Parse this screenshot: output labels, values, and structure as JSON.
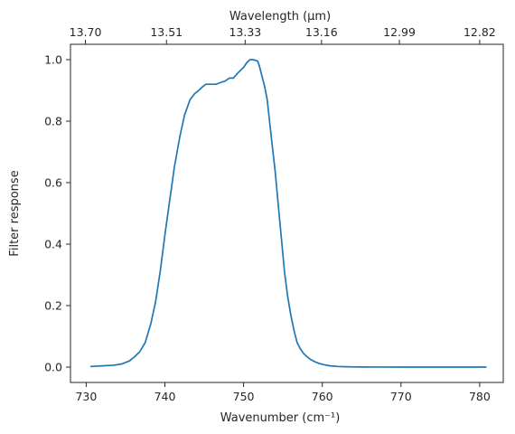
{
  "chart_data": {
    "type": "line",
    "title": "",
    "xlabel": "Wavenumber (cm⁻¹)",
    "ylabel": "Filter response",
    "top_xlabel": "Wavelength (μm)",
    "xlim": [
      728.0,
      783.0
    ],
    "ylim": [
      -0.05,
      1.05
    ],
    "xticks": [
      730,
      740,
      750,
      760,
      770,
      780
    ],
    "yticks": [
      0.0,
      0.2,
      0.4,
      0.6,
      0.8,
      1.0
    ],
    "ytick_labels": [
      "0.0",
      "0.2",
      "0.4",
      "0.6",
      "0.8",
      "1.0"
    ],
    "top_ticks": [
      {
        "label": "13.70",
        "wavenumber": 729.9
      },
      {
        "label": "13.51",
        "wavenumber": 740.2
      },
      {
        "label": "13.33",
        "wavenumber": 750.2
      },
      {
        "label": "13.16",
        "wavenumber": 759.9
      },
      {
        "label": "12.99",
        "wavenumber": 769.8
      },
      {
        "label": "12.82",
        "wavenumber": 780.0
      }
    ],
    "grid": false,
    "legend": "none",
    "colors": {
      "series": "#1f77b4",
      "axes": "#262626"
    },
    "series": [
      {
        "x": [
          730.6,
          732.0,
          733.5,
          734.5,
          735.5,
          736.2,
          736.8,
          737.5,
          738.2,
          738.8,
          739.4,
          740.0,
          740.6,
          741.2,
          741.9,
          742.5,
          743.2,
          743.8,
          744.3,
          744.7,
          745.2,
          745.6,
          746.0,
          746.5,
          747.0,
          747.6,
          748.2,
          748.7,
          749.2,
          749.6,
          750.0,
          750.4,
          750.8,
          751.2,
          751.5,
          751.8,
          752.0,
          752.3,
          752.5,
          752.7,
          753.0,
          753.3,
          753.6,
          754.0,
          754.4,
          754.8,
          755.2,
          755.6,
          756.0,
          756.4,
          756.8,
          757.2,
          757.6,
          758.0,
          758.5,
          759.0,
          759.6,
          760.2,
          761.0,
          762.0,
          763.0,
          764.0,
          765.0,
          767.0,
          770.0,
          775.0,
          780.8
        ],
        "values": [
          0.002,
          0.004,
          0.006,
          0.01,
          0.02,
          0.035,
          0.05,
          0.08,
          0.14,
          0.21,
          0.31,
          0.43,
          0.54,
          0.65,
          0.75,
          0.82,
          0.87,
          0.89,
          0.9,
          0.91,
          0.92,
          0.92,
          0.92,
          0.92,
          0.925,
          0.93,
          0.94,
          0.94,
          0.955,
          0.965,
          0.975,
          0.99,
          1.0,
          1.0,
          0.998,
          0.995,
          0.98,
          0.95,
          0.93,
          0.91,
          0.87,
          0.8,
          0.73,
          0.64,
          0.53,
          0.42,
          0.31,
          0.23,
          0.17,
          0.12,
          0.08,
          0.06,
          0.045,
          0.035,
          0.025,
          0.018,
          0.012,
          0.008,
          0.004,
          0.002,
          0.001,
          0.0005,
          0.0003,
          0.0002,
          0.0001,
          0.0001,
          0.0
        ]
      }
    ]
  }
}
